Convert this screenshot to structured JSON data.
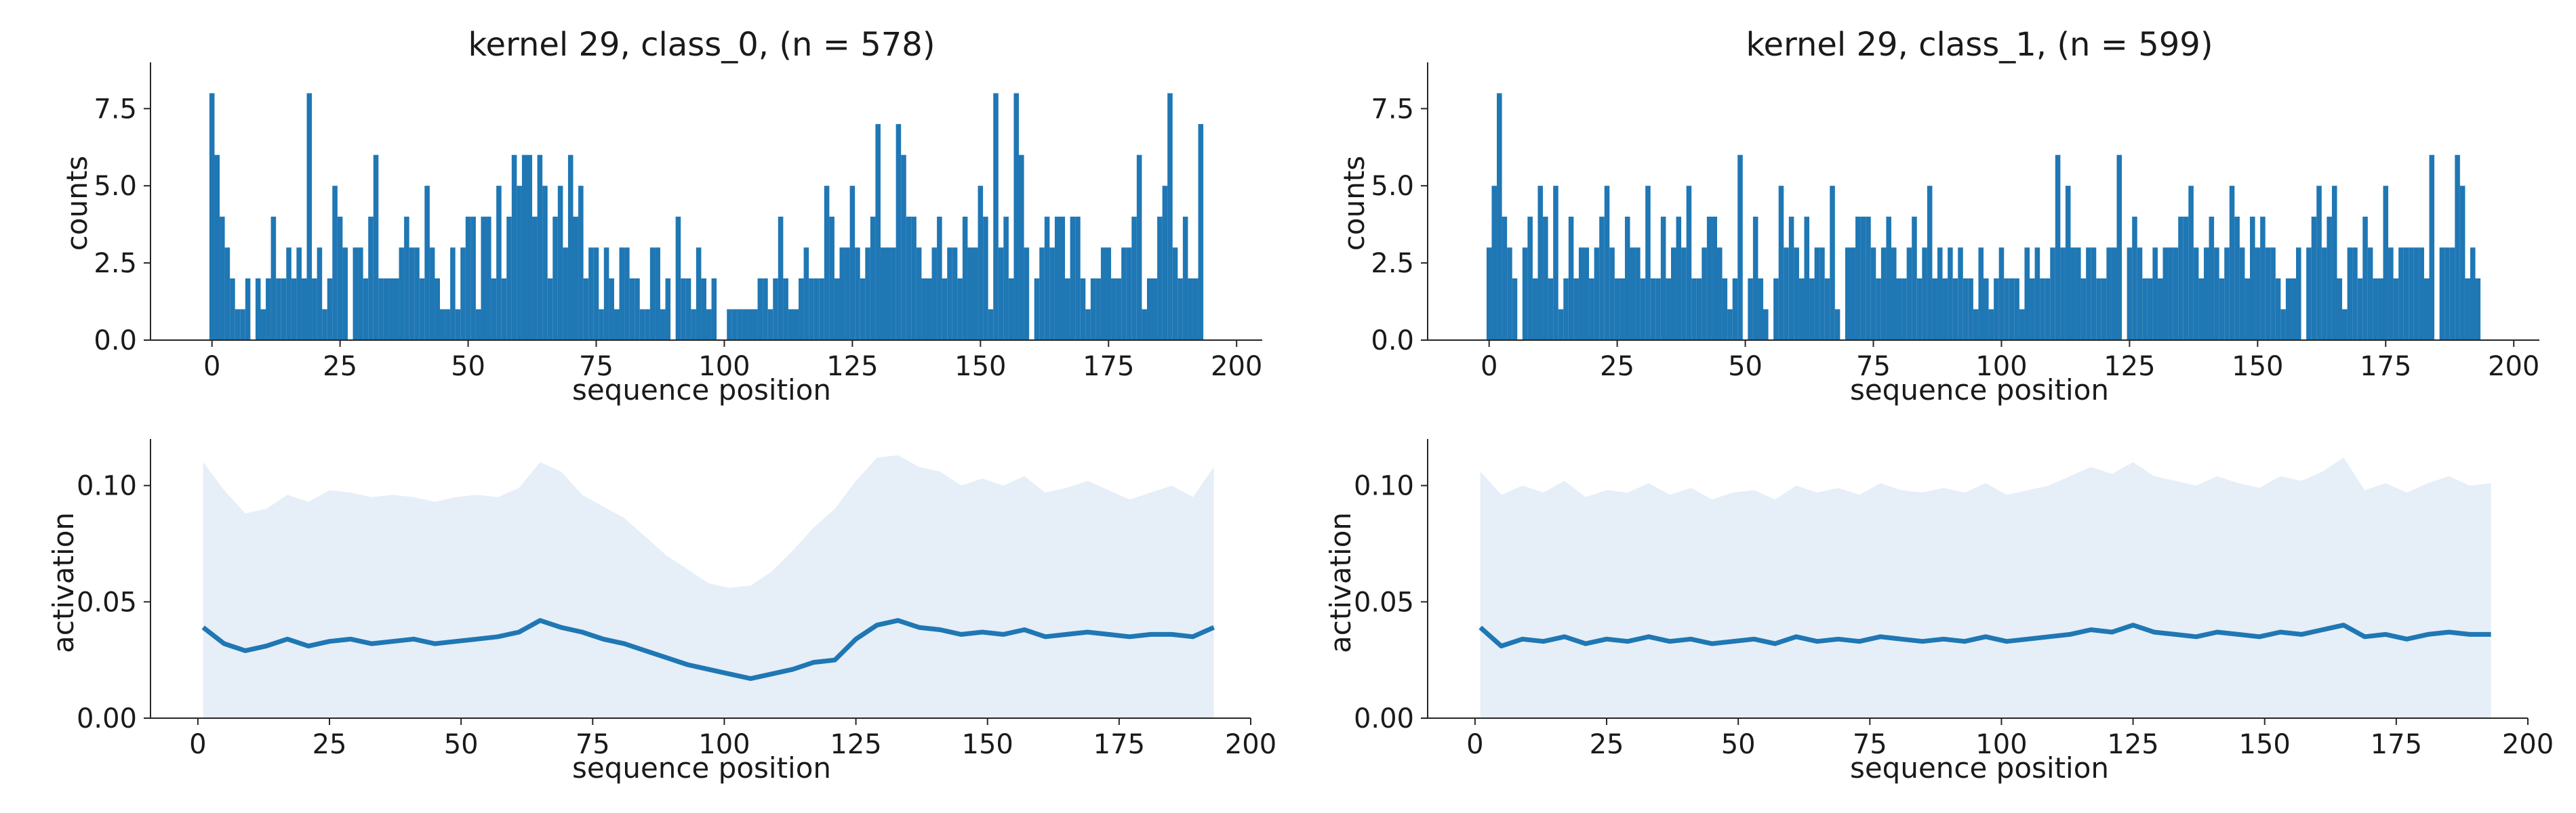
{
  "colors": {
    "bar": "#1f77b4",
    "line": "#1f77b4",
    "band": "#e6eef7",
    "axis": "#262626",
    "text": "#1a1a1a"
  },
  "chart_data": [
    {
      "type": "bar",
      "title": "kernel 29, class_0, (n = 578)",
      "xlabel": "sequence position",
      "ylabel": "counts",
      "xlim": [
        -12,
        205
      ],
      "ylim": [
        0,
        9.0
      ],
      "xticks": [
        0,
        25,
        50,
        75,
        100,
        125,
        150,
        175,
        200
      ],
      "xtick_labels": [
        "0",
        "25",
        "50",
        "75",
        "100",
        "125",
        "150",
        "175",
        "200"
      ],
      "yticks": [
        0,
        2.5,
        5,
        7.5
      ],
      "ytick_labels": [
        "0.0",
        "2.5",
        "5.0",
        "7.5"
      ],
      "x": [
        0,
        1,
        2,
        3,
        4,
        5,
        6,
        7,
        8,
        9,
        10,
        11,
        12,
        13,
        14,
        15,
        16,
        17,
        18,
        19,
        20,
        21,
        22,
        23,
        24,
        25,
        26,
        27,
        28,
        29,
        30,
        31,
        32,
        33,
        34,
        35,
        36,
        37,
        38,
        39,
        40,
        41,
        42,
        43,
        44,
        45,
        46,
        47,
        48,
        49,
        50,
        51,
        52,
        53,
        54,
        55,
        56,
        57,
        58,
        59,
        60,
        61,
        62,
        63,
        64,
        65,
        66,
        67,
        68,
        69,
        70,
        71,
        72,
        73,
        74,
        75,
        76,
        77,
        78,
        79,
        80,
        81,
        82,
        83,
        84,
        85,
        86,
        87,
        88,
        89,
        90,
        91,
        92,
        93,
        94,
        95,
        96,
        97,
        98,
        99,
        100,
        101,
        102,
        103,
        104,
        105,
        106,
        107,
        108,
        109,
        110,
        111,
        112,
        113,
        114,
        115,
        116,
        117,
        118,
        119,
        120,
        121,
        122,
        123,
        124,
        125,
        126,
        127,
        128,
        129,
        130,
        131,
        132,
        133,
        134,
        135,
        136,
        137,
        138,
        139,
        140,
        141,
        142,
        143,
        144,
        145,
        146,
        147,
        148,
        149,
        150,
        151,
        152,
        153,
        154,
        155,
        156,
        157,
        158,
        159,
        160,
        161,
        162,
        163,
        164,
        165,
        166,
        167,
        168,
        169,
        170,
        171,
        172,
        173,
        174,
        175,
        176,
        177,
        178,
        179,
        180,
        181,
        182,
        183,
        184,
        185,
        186,
        187,
        188,
        189,
        190,
        191,
        192,
        193
      ],
      "values": [
        8,
        6,
        4,
        3,
        2,
        1,
        1,
        2,
        0,
        2,
        1,
        2,
        4,
        2,
        2,
        3,
        2,
        3,
        2,
        8,
        2,
        3,
        1,
        2,
        5,
        4,
        3,
        0,
        3,
        3,
        2,
        4,
        6,
        2,
        2,
        2,
        2,
        3,
        4,
        3,
        3,
        2,
        5,
        3,
        2,
        1,
        1,
        3,
        1,
        3,
        4,
        4,
        1,
        4,
        4,
        2,
        5,
        2,
        4,
        6,
        5,
        6,
        6,
        4,
        6,
        5,
        2,
        4,
        5,
        3,
        6,
        4,
        5,
        2,
        3,
        3,
        1,
        3,
        2,
        1,
        3,
        3,
        2,
        2,
        1,
        1,
        3,
        3,
        1,
        2,
        0,
        4,
        2,
        2,
        1,
        3,
        2,
        1,
        2,
        0,
        0,
        1,
        1,
        1,
        1,
        1,
        1,
        2,
        2,
        1,
        2,
        4,
        2,
        1,
        1,
        2,
        3,
        2,
        2,
        2,
        5,
        4,
        2,
        3,
        3,
        5,
        3,
        2,
        3,
        4,
        7,
        3,
        3,
        3,
        7,
        6,
        4,
        4,
        3,
        2,
        2,
        3,
        4,
        2,
        3,
        3,
        2,
        4,
        3,
        3,
        5,
        4,
        1,
        8,
        3,
        4,
        2,
        8,
        6,
        3,
        0,
        2,
        3,
        4,
        3,
        4,
        4,
        2,
        4,
        4,
        2,
        1,
        2,
        2,
        3,
        3,
        2,
        2,
        3,
        3,
        4,
        6,
        1,
        2,
        2,
        4,
        5,
        8,
        3,
        2,
        4,
        2,
        2,
        7
      ]
    },
    {
      "type": "bar",
      "title": "kernel 29, class_1, (n = 599)",
      "xlabel": "sequence position",
      "ylabel": "counts",
      "xlim": [
        -12,
        205
      ],
      "ylim": [
        0,
        9.0
      ],
      "xticks": [
        0,
        25,
        50,
        75,
        100,
        125,
        150,
        175,
        200
      ],
      "xtick_labels": [
        "0",
        "25",
        "50",
        "75",
        "100",
        "125",
        "150",
        "175",
        "200"
      ],
      "yticks": [
        0,
        2.5,
        5,
        7.5
      ],
      "ytick_labels": [
        "0.0",
        "2.5",
        "5.0",
        "7.5"
      ],
      "x": [
        0,
        1,
        2,
        3,
        4,
        5,
        6,
        7,
        8,
        9,
        10,
        11,
        12,
        13,
        14,
        15,
        16,
        17,
        18,
        19,
        20,
        21,
        22,
        23,
        24,
        25,
        26,
        27,
        28,
        29,
        30,
        31,
        32,
        33,
        34,
        35,
        36,
        37,
        38,
        39,
        40,
        41,
        42,
        43,
        44,
        45,
        46,
        47,
        48,
        49,
        50,
        51,
        52,
        53,
        54,
        55,
        56,
        57,
        58,
        59,
        60,
        61,
        62,
        63,
        64,
        65,
        66,
        67,
        68,
        69,
        70,
        71,
        72,
        73,
        74,
        75,
        76,
        77,
        78,
        79,
        80,
        81,
        82,
        83,
        84,
        85,
        86,
        87,
        88,
        89,
        90,
        91,
        92,
        93,
        94,
        95,
        96,
        97,
        98,
        99,
        100,
        101,
        102,
        103,
        104,
        105,
        106,
        107,
        108,
        109,
        110,
        111,
        112,
        113,
        114,
        115,
        116,
        117,
        118,
        119,
        120,
        121,
        122,
        123,
        124,
        125,
        126,
        127,
        128,
        129,
        130,
        131,
        132,
        133,
        134,
        135,
        136,
        137,
        138,
        139,
        140,
        141,
        142,
        143,
        144,
        145,
        146,
        147,
        148,
        149,
        150,
        151,
        152,
        153,
        154,
        155,
        156,
        157,
        158,
        159,
        160,
        161,
        162,
        163,
        164,
        165,
        166,
        167,
        168,
        169,
        170,
        171,
        172,
        173,
        174,
        175,
        176,
        177,
        178,
        179,
        180,
        181,
        182,
        183,
        184,
        185,
        186,
        187,
        188,
        189,
        190,
        191,
        192,
        193
      ],
      "values": [
        3,
        5,
        8,
        4,
        3,
        2,
        0,
        3,
        4,
        2,
        5,
        4,
        2,
        5,
        1,
        2,
        4,
        2,
        3,
        3,
        2,
        3,
        4,
        5,
        3,
        2,
        2,
        4,
        3,
        3,
        2,
        5,
        2,
        2,
        4,
        2,
        3,
        4,
        3,
        5,
        2,
        2,
        3,
        4,
        4,
        3,
        2,
        1,
        2,
        6,
        0,
        2,
        4,
        2,
        1,
        0,
        2,
        5,
        3,
        4,
        3,
        2,
        4,
        2,
        3,
        3,
        2,
        5,
        1,
        0,
        3,
        3,
        4,
        4,
        4,
        3,
        2,
        3,
        4,
        3,
        2,
        2,
        3,
        4,
        2,
        3,
        5,
        2,
        3,
        2,
        3,
        2,
        3,
        2,
        2,
        1,
        3,
        2,
        1,
        2,
        3,
        2,
        2,
        2,
        1,
        3,
        2,
        3,
        2,
        2,
        3,
        6,
        3,
        5,
        3,
        3,
        2,
        3,
        3,
        2,
        2,
        3,
        3,
        6,
        0,
        3,
        4,
        3,
        2,
        2,
        3,
        2,
        3,
        3,
        3,
        4,
        4,
        5,
        3,
        2,
        3,
        4,
        3,
        2,
        3,
        5,
        4,
        3,
        2,
        4,
        3,
        4,
        3,
        3,
        2,
        1,
        2,
        2,
        3,
        0,
        3,
        4,
        5,
        3,
        4,
        5,
        2,
        1,
        3,
        3,
        2,
        4,
        3,
        2,
        2,
        5,
        3,
        2,
        3,
        3,
        3,
        3,
        3,
        2,
        6,
        0,
        3,
        3,
        3,
        6,
        5,
        2,
        3,
        2
      ]
    },
    {
      "type": "area",
      "title": "",
      "xlabel": "sequence position",
      "ylabel": "activation",
      "xlim": [
        -9,
        200
      ],
      "ylim": [
        0,
        0.12
      ],
      "xticks": [
        0,
        25,
        50,
        75,
        100,
        125,
        150,
        175,
        200
      ],
      "xtick_labels": [
        "0",
        "25",
        "50",
        "75",
        "100",
        "125",
        "150",
        "175",
        "200"
      ],
      "yticks": [
        0,
        0.05,
        0.1
      ],
      "ytick_labels": [
        "0.00",
        "0.05",
        "0.10"
      ],
      "x": [
        1,
        5,
        9,
        13,
        17,
        21,
        25,
        29,
        33,
        37,
        41,
        45,
        49,
        53,
        57,
        61,
        65,
        69,
        73,
        77,
        81,
        85,
        89,
        93,
        97,
        101,
        105,
        109,
        113,
        117,
        121,
        125,
        129,
        133,
        137,
        141,
        145,
        149,
        153,
        157,
        161,
        165,
        169,
        173,
        177,
        181,
        185,
        189,
        193
      ],
      "series": [
        {
          "role": "mean",
          "values": [
            0.039,
            0.032,
            0.029,
            0.031,
            0.034,
            0.031,
            0.033,
            0.034,
            0.032,
            0.033,
            0.034,
            0.032,
            0.033,
            0.034,
            0.035,
            0.037,
            0.042,
            0.039,
            0.037,
            0.034,
            0.032,
            0.029,
            0.026,
            0.023,
            0.021,
            0.019,
            0.017,
            0.019,
            0.021,
            0.024,
            0.025,
            0.034,
            0.04,
            0.042,
            0.039,
            0.038,
            0.036,
            0.037,
            0.036,
            0.038,
            0.035,
            0.036,
            0.037,
            0.036,
            0.035,
            0.036,
            0.036,
            0.035,
            0.039
          ]
        },
        {
          "role": "upper",
          "values": [
            0.11,
            0.098,
            0.088,
            0.09,
            0.096,
            0.093,
            0.098,
            0.097,
            0.095,
            0.096,
            0.095,
            0.093,
            0.095,
            0.096,
            0.095,
            0.099,
            0.11,
            0.106,
            0.096,
            0.091,
            0.086,
            0.078,
            0.07,
            0.064,
            0.058,
            0.056,
            0.057,
            0.063,
            0.072,
            0.082,
            0.09,
            0.102,
            0.112,
            0.113,
            0.108,
            0.106,
            0.1,
            0.103,
            0.1,
            0.104,
            0.097,
            0.099,
            0.102,
            0.098,
            0.094,
            0.097,
            0.1,
            0.095,
            0.108
          ]
        }
      ]
    },
    {
      "type": "area",
      "title": "",
      "xlabel": "sequence position",
      "ylabel": "activation",
      "xlim": [
        -9,
        200
      ],
      "ylim": [
        0,
        0.12
      ],
      "xticks": [
        0,
        25,
        50,
        75,
        100,
        125,
        150,
        175,
        200
      ],
      "xtick_labels": [
        "0",
        "25",
        "50",
        "75",
        "100",
        "125",
        "150",
        "175",
        "200"
      ],
      "yticks": [
        0,
        0.05,
        0.1
      ],
      "ytick_labels": [
        "0.00",
        "0.05",
        "0.10"
      ],
      "x": [
        1,
        5,
        9,
        13,
        17,
        21,
        25,
        29,
        33,
        37,
        41,
        45,
        49,
        53,
        57,
        61,
        65,
        69,
        73,
        77,
        81,
        85,
        89,
        93,
        97,
        101,
        105,
        109,
        113,
        117,
        121,
        125,
        129,
        133,
        137,
        141,
        145,
        149,
        153,
        157,
        161,
        165,
        169,
        173,
        177,
        181,
        185,
        189,
        193
      ],
      "series": [
        {
          "role": "mean",
          "values": [
            0.039,
            0.031,
            0.034,
            0.033,
            0.035,
            0.032,
            0.034,
            0.033,
            0.035,
            0.033,
            0.034,
            0.032,
            0.033,
            0.034,
            0.032,
            0.035,
            0.033,
            0.034,
            0.033,
            0.035,
            0.034,
            0.033,
            0.034,
            0.033,
            0.035,
            0.033,
            0.034,
            0.035,
            0.036,
            0.038,
            0.037,
            0.04,
            0.037,
            0.036,
            0.035,
            0.037,
            0.036,
            0.035,
            0.037,
            0.036,
            0.038,
            0.04,
            0.035,
            0.036,
            0.034,
            0.036,
            0.037,
            0.036,
            0.036
          ]
        },
        {
          "role": "upper",
          "values": [
            0.106,
            0.096,
            0.1,
            0.097,
            0.102,
            0.095,
            0.098,
            0.097,
            0.101,
            0.096,
            0.099,
            0.094,
            0.097,
            0.098,
            0.094,
            0.1,
            0.097,
            0.099,
            0.096,
            0.101,
            0.098,
            0.097,
            0.099,
            0.097,
            0.101,
            0.096,
            0.098,
            0.1,
            0.104,
            0.108,
            0.105,
            0.11,
            0.104,
            0.102,
            0.1,
            0.104,
            0.101,
            0.099,
            0.104,
            0.102,
            0.106,
            0.112,
            0.098,
            0.101,
            0.097,
            0.101,
            0.104,
            0.1,
            0.101
          ]
        }
      ]
    }
  ]
}
